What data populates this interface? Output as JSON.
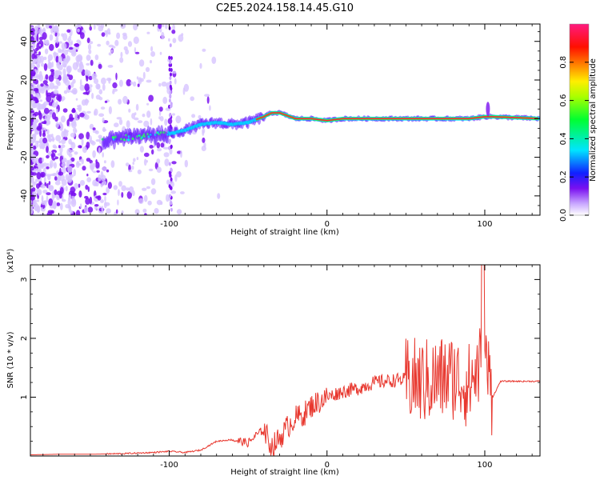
{
  "figure_title": "C2E5.2024.158.14.45.G10",
  "colors": {
    "snr_line": "#e8382f",
    "frame": "#000000"
  },
  "chart_data": [
    {
      "type": "heatmap",
      "title": "",
      "xlabel": "Height of straight line (km)",
      "ylabel": "Frequency (Hz)",
      "xlim": [
        -188,
        135
      ],
      "ylim": [
        -50,
        49
      ],
      "x_ticks": [
        -100,
        0,
        100
      ],
      "x_tick_labels": [
        "-100",
        "0",
        "100"
      ],
      "y_ticks": [
        -40,
        -20,
        0,
        20,
        40
      ],
      "y_tick_labels": [
        "-40",
        "-20",
        "0",
        "20",
        "40"
      ],
      "colorbar": {
        "label": "Normalized spectral amplitude",
        "range": [
          0,
          1
        ],
        "ticks": [
          0.0,
          0.2,
          0.4,
          0.6,
          0.8
        ],
        "tick_labels": [
          "0.0",
          "0.2",
          "0.4",
          "0.6",
          "0.8"
        ],
        "colormap": [
          "#ffffff",
          "#b088ff",
          "#7a10f0",
          "#0000ff",
          "#00ffff",
          "#00ff00",
          "#ffff00",
          "#ff8000",
          "#ff0000",
          "#ff1a80"
        ]
      },
      "ridge": {
        "description_values": "peak frequency (Hz) vs height (km)",
        "x": [
          -140,
          -130,
          -120,
          -110,
          -100,
          -90,
          -80,
          -70,
          -60,
          -50,
          -40,
          -35,
          -30,
          -20,
          -10,
          0,
          10,
          20,
          40,
          60,
          70,
          80,
          90,
          100,
          105,
          135
        ],
        "y": [
          -12,
          -10,
          -9,
          -9,
          -8,
          -6,
          -3,
          -2,
          -3,
          -2,
          1,
          3,
          3,
          0,
          0,
          -1,
          0,
          0,
          0,
          0,
          0,
          0,
          0,
          1,
          1,
          0
        ]
      },
      "grid": false,
      "legend": "colorbar-right"
    },
    {
      "type": "line",
      "title": "",
      "xlabel": "Height of straight line (km)",
      "ylabel": "SNR (10 * v/v)",
      "y_multiplier": "(x10⁴)",
      "xlim": [
        -188,
        135
      ],
      "ylim": [
        0,
        3.25
      ],
      "x_ticks": [
        -100,
        0,
        100
      ],
      "x_tick_labels": [
        "-100",
        "0",
        "100"
      ],
      "y_ticks": [
        1,
        2,
        3
      ],
      "y_tick_labels": [
        "1",
        "2",
        "3"
      ],
      "series": [
        {
          "color": "#e8382f",
          "x": [
            -188,
            -170,
            -150,
            -130,
            -110,
            -100,
            -90,
            -80,
            -70,
            -60,
            -50,
            -45,
            -40,
            -35,
            -30,
            -25,
            -20,
            -15,
            -10,
            0,
            10,
            20,
            30,
            40,
            50,
            60,
            70,
            80,
            90,
            100,
            105,
            110,
            135
          ],
          "y": [
            0.02,
            0.03,
            0.03,
            0.04,
            0.06,
            0.08,
            0.06,
            0.1,
            0.25,
            0.28,
            0.22,
            0.35,
            0.45,
            0.15,
            0.3,
            0.5,
            0.65,
            0.7,
            0.85,
            1.0,
            1.1,
            1.15,
            1.25,
            1.28,
            1.3,
            1.25,
            1.3,
            1.35,
            1.2,
            1.7,
            1.0,
            1.27,
            1.27
          ]
        }
      ],
      "grid": false,
      "legend": "none"
    }
  ]
}
